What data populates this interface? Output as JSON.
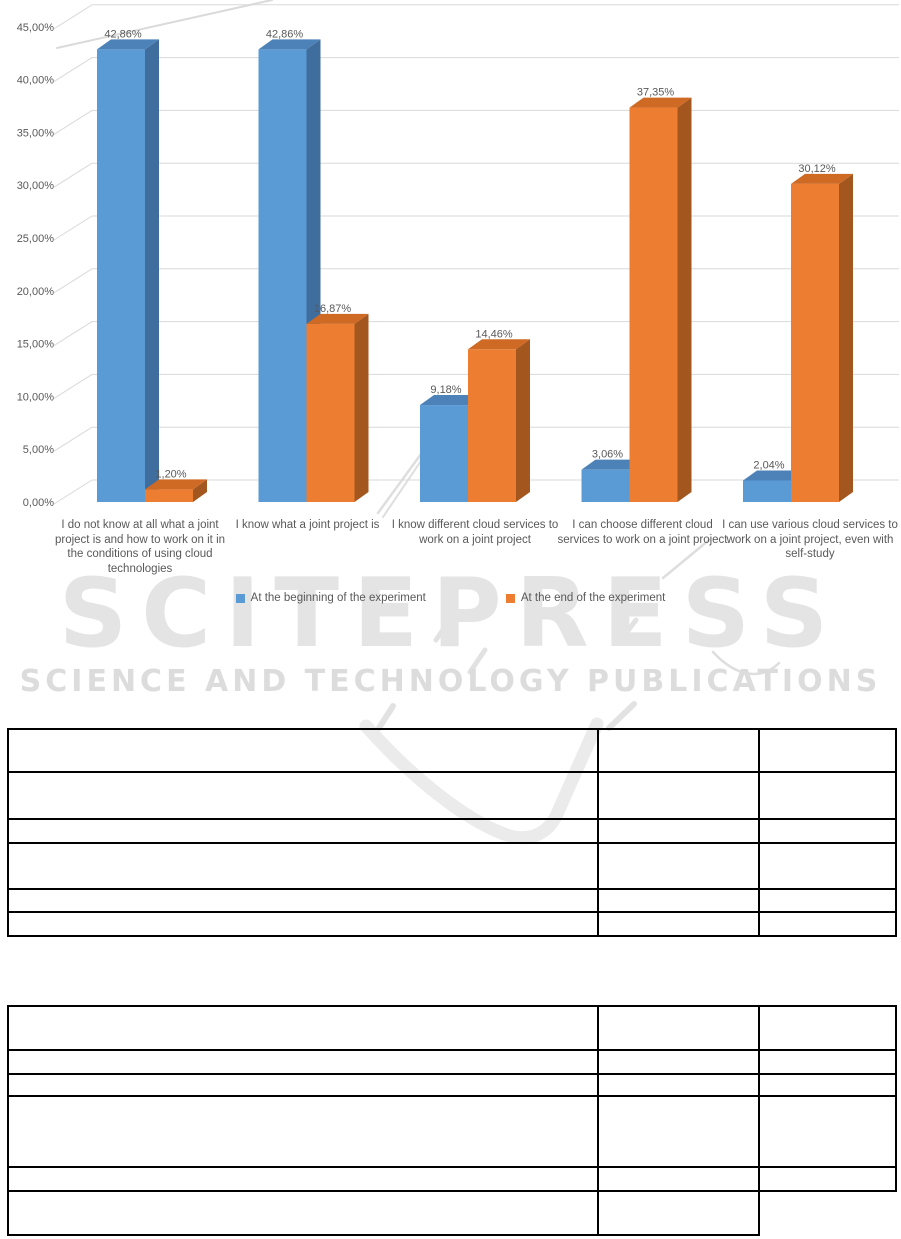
{
  "chart_data": {
    "type": "bar",
    "variant": "3d-clustered-column",
    "title": "",
    "xlabel": "",
    "ylabel": "",
    "grid": true,
    "legend_position": "bottom",
    "decimal_separator": ",",
    "categories": [
      "I do not know at all what a joint project is and how to work on it in the conditions of using cloud technologies",
      "I know what a joint project is",
      "I know different cloud services to work on a joint project",
      "I can choose different cloud services to work on a joint project",
      "I can use various cloud services to work on a joint project, even with self-study"
    ],
    "series": [
      {
        "name": "At the beginning of the experiment",
        "color": "#5b9bd5",
        "top_color": "#4d82b8",
        "side_color": "#3e6d9e",
        "values": [
          42.86,
          42.86,
          9.18,
          3.06,
          2.04
        ],
        "data_labels": [
          "42,86%",
          "42,86%",
          "9,18%",
          "3,06%",
          "2,04%"
        ]
      },
      {
        "name": "At the end of the experiment",
        "color": "#ed7d31",
        "top_color": "#cf6a24",
        "side_color": "#a4561f",
        "values": [
          1.2,
          16.87,
          14.46,
          37.35,
          30.12
        ],
        "data_labels": [
          "1,20%",
          "16,87%",
          "14,46%",
          "37,35%",
          "30,12%"
        ]
      }
    ],
    "y_axis": {
      "min": 0,
      "max": 45,
      "step": 5,
      "tick_labels": [
        "0,00%",
        "5,00%",
        "10,00%",
        "15,00%",
        "20,00%",
        "25,00%",
        "30,00%",
        "35,00%",
        "40,00%",
        "45,00%"
      ]
    },
    "text_color": "#595959",
    "gridline_color": "#d9d9d9"
  },
  "watermark": {
    "title": "SCITEPRESS",
    "subtitle": "SCIENCE AND TECHNOLOGY PUBLICATIONS"
  }
}
